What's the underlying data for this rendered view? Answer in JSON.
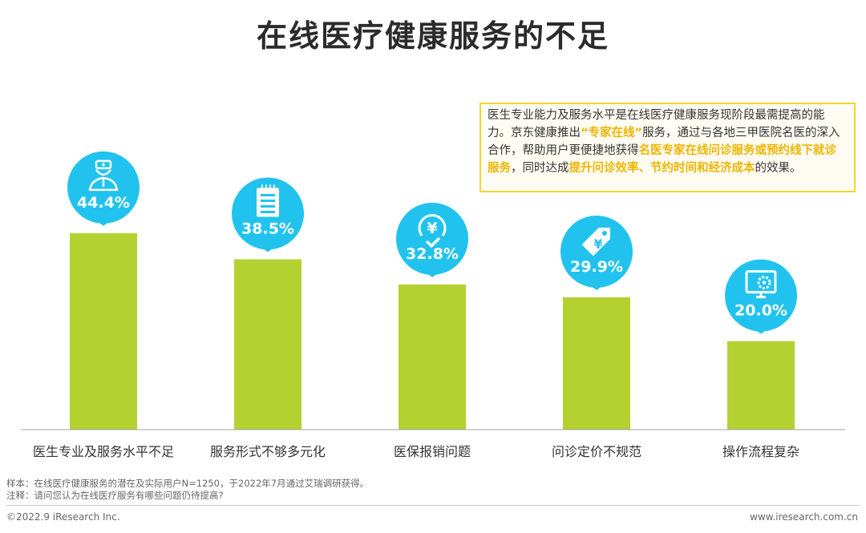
{
  "title": "在线医疗健康服务的不足",
  "callout": {
    "parts": [
      {
        "text": "医生专业能力及服务水平是在线医疗健康服务现阶段最需提高的能力。京东健康推出",
        "hl": false
      },
      {
        "text": "“专家在线”",
        "hl": true
      },
      {
        "text": "服务，通过与各地三甲医院名医的深入合作，帮助用户更便捷地获得",
        "hl": false
      },
      {
        "text": "名医专家在线问诊服务或预约线下就诊服务",
        "hl": true
      },
      {
        "text": "，同时达成",
        "hl": false
      },
      {
        "text": "提升问诊效率、节约时间和经济成本",
        "hl": true
      },
      {
        "text": "的效果。",
        "hl": false
      }
    ]
  },
  "chart_data": {
    "type": "bar",
    "categories": [
      "医生专业及服务水平不足",
      "服务形式不够多元化",
      "医保报销问题",
      "问诊定价不规范",
      "操作流程复杂"
    ],
    "values": [
      44.4,
      38.5,
      32.8,
      29.9,
      20.0
    ],
    "value_labels": [
      "44.4%",
      "38.5%",
      "32.8%",
      "29.9%",
      "20.0%"
    ],
    "icons": [
      "doctor-icon",
      "document-icon",
      "yuan-check-icon",
      "price-tag-icon",
      "monitor-gear-icon"
    ],
    "bar_color": "#b3d232",
    "bubble_color": "#21c3ee",
    "ylim": [
      0,
      60
    ]
  },
  "footnotes": {
    "sample": "样本：在线医疗健康服务的潜在及实际用户N=1250，于2022年7月通过艾瑞调研获得。",
    "note": "注释：请问您认为在线医疗服务有哪些问题仍待提高?"
  },
  "footer": {
    "copyright": "©2022.9 iResearch Inc.",
    "website": "www.iresearch.com.cn"
  }
}
